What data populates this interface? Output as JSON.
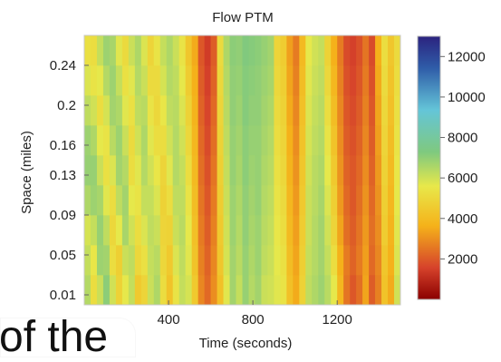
{
  "chart_data": {
    "type": "heatmap",
    "title": "Flow PTM",
    "xlabel": "Time (seconds)",
    "ylabel": "Space (miles)",
    "x_ticks": [
      400,
      800,
      1200
    ],
    "y_ticks": [
      0.01,
      0.05,
      0.09,
      0.13,
      0.16,
      0.2,
      0.24
    ],
    "colorbar_ticks": [
      2000,
      4000,
      6000,
      8000,
      10000,
      12000
    ],
    "xlim": [
      0,
      1500
    ],
    "ylim": [
      0,
      0.27
    ],
    "clim": [
      0,
      13000
    ],
    "colorscale": [
      "#8b0000",
      "#d6422b",
      "#f5b21a",
      "#e8e84a",
      "#7fc97f",
      "#64c5d8",
      "#2f5ca8",
      "#2b237f"
    ],
    "x_bins": [
      0,
      30,
      60,
      90,
      120,
      150,
      180,
      210,
      240,
      270,
      300,
      330,
      360,
      390,
      420,
      450,
      480,
      510,
      540,
      570,
      600,
      630,
      660,
      690,
      720,
      750,
      780,
      810,
      840,
      870,
      900,
      930,
      960,
      990,
      1020,
      1050,
      1080,
      1110,
      1140,
      1170,
      1200,
      1230,
      1260,
      1290,
      1320,
      1350,
      1380,
      1410,
      1440,
      1470
    ],
    "y_bins": [
      0.0,
      0.03,
      0.06,
      0.09,
      0.12,
      0.15,
      0.18,
      0.21,
      0.24
    ],
    "z": [
      [
        6500,
        5200,
        6100,
        7200,
        6000,
        4800,
        5600,
        6200,
        4500,
        4900,
        6100,
        6600,
        5200,
        4300,
        5400,
        6200,
        5900,
        4500,
        3000,
        2500,
        3100,
        4200,
        5700,
        6800,
        6200,
        7000,
        6500,
        6800,
        6100,
        6000,
        5700,
        5400,
        4200,
        3600,
        4800,
        6300,
        6600,
        6900,
        6400,
        5600,
        3900,
        2700,
        2200,
        2600,
        3500,
        2300,
        2900,
        4300,
        3600,
        6000
      ],
      [
        6200,
        5500,
        6900,
        6800,
        5200,
        4700,
        6100,
        6300,
        5000,
        5300,
        6200,
        6400,
        5000,
        4500,
        5800,
        6300,
        5700,
        4300,
        2900,
        2400,
        3000,
        4400,
        5900,
        6800,
        6400,
        7000,
        6600,
        6900,
        6300,
        6100,
        5600,
        5300,
        4100,
        3500,
        4700,
        6200,
        6500,
        6800,
        6200,
        5200,
        3700,
        2800,
        2400,
        2800,
        3400,
        2500,
        3000,
        4400,
        3700,
        5800
      ],
      [
        5900,
        6200,
        7000,
        6300,
        5000,
        5600,
        6700,
        6000,
        5200,
        5800,
        6300,
        6100,
        4900,
        4800,
        6100,
        6400,
        5600,
        4200,
        2800,
        2300,
        2900,
        4500,
        6000,
        6900,
        6500,
        7100,
        6700,
        6900,
        6400,
        6200,
        5500,
        5200,
        4000,
        3400,
        4600,
        6100,
        6500,
        6800,
        6000,
        4900,
        3500,
        2600,
        2300,
        2700,
        3300,
        2600,
        3100,
        4600,
        3800,
        5700
      ],
      [
        6600,
        6900,
        6700,
        5700,
        5200,
        6300,
        6800,
        5600,
        5400,
        6200,
        6200,
        5800,
        4800,
        5200,
        6300,
        6300,
        5400,
        4100,
        2700,
        2200,
        2800,
        4600,
        6100,
        6900,
        6600,
        7100,
        6800,
        7000,
        6500,
        6300,
        5400,
        5100,
        3900,
        3300,
        4500,
        6100,
        6400,
        6700,
        5800,
        4700,
        3300,
        2500,
        2200,
        2600,
        3200,
        2500,
        3200,
        4700,
        3900,
        5600
      ],
      [
        7000,
        7000,
        6100,
        5300,
        5800,
        6800,
        6500,
        5200,
        5700,
        6500,
        6000,
        5500,
        4900,
        5700,
        6500,
        6200,
        5200,
        4000,
        2600,
        2100,
        2700,
        4700,
        6200,
        7000,
        6700,
        7200,
        6900,
        7000,
        6600,
        6400,
        5300,
        5000,
        3800,
        3200,
        4400,
        6000,
        6400,
        6600,
        5600,
        4500,
        3200,
        2400,
        2200,
        2500,
        3100,
        2400,
        3300,
        4800,
        4000,
        5500
      ],
      [
        6900,
        6600,
        5600,
        5400,
        6400,
        6900,
        6100,
        5100,
        6000,
        6600,
        5700,
        5200,
        5200,
        6000,
        6500,
        6000,
        5000,
        3900,
        2500,
        2000,
        2600,
        4800,
        6300,
        7000,
        6800,
        7200,
        7000,
        7000,
        6700,
        6500,
        5200,
        4900,
        3700,
        3100,
        4300,
        5900,
        6300,
        6500,
        5400,
        4300,
        3100,
        2300,
        2100,
        2400,
        3000,
        2300,
        3400,
        4900,
        4100,
        5400
      ],
      [
        6300,
        6000,
        5200,
        5900,
        6800,
        6600,
        5700,
        5300,
        6300,
        6400,
        5400,
        5000,
        5500,
        6300,
        6400,
        5800,
        4800,
        3800,
        2400,
        1900,
        2500,
        4900,
        6400,
        7100,
        6900,
        7300,
        7100,
        7100,
        6800,
        6600,
        5100,
        4800,
        3600,
        3000,
        4200,
        5800,
        6200,
        6400,
        5200,
        4100,
        3000,
        2200,
        2000,
        2300,
        2900,
        2200,
        3500,
        5000,
        4200,
        5300
      ],
      [
        5800,
        5400,
        5600,
        6500,
        6900,
        6200,
        5300,
        5700,
        6500,
        6100,
        5100,
        5100,
        5900,
        6500,
        6300,
        5600,
        4600,
        3700,
        2300,
        1800,
        2400,
        5000,
        6500,
        7100,
        7000,
        7300,
        7200,
        7100,
        6900,
        6700,
        5000,
        4700,
        3500,
        2900,
        4100,
        5700,
        6100,
        6300,
        5000,
        3900,
        2900,
        2100,
        1900,
        2200,
        2800,
        2100,
        3600,
        5100,
        4300,
        5200
      ],
      [
        5300,
        5200,
        6200,
        6900,
        6700,
        5700,
        5100,
        6100,
        6600,
        5800,
        4900,
        5400,
        6200,
        6600,
        6100,
        5400,
        4400,
        3600,
        2200,
        1700,
        2300,
        5100,
        6600,
        7200,
        7100,
        7400,
        7300,
        7200,
        7000,
        6800,
        4900,
        4600,
        3400,
        2800,
        4000,
        5600,
        6000,
        6200,
        4800,
        3700,
        2800,
        2000,
        1800,
        2100,
        2700,
        2000,
        3700,
        5200,
        4400,
        5100
      ]
    ]
  }
}
